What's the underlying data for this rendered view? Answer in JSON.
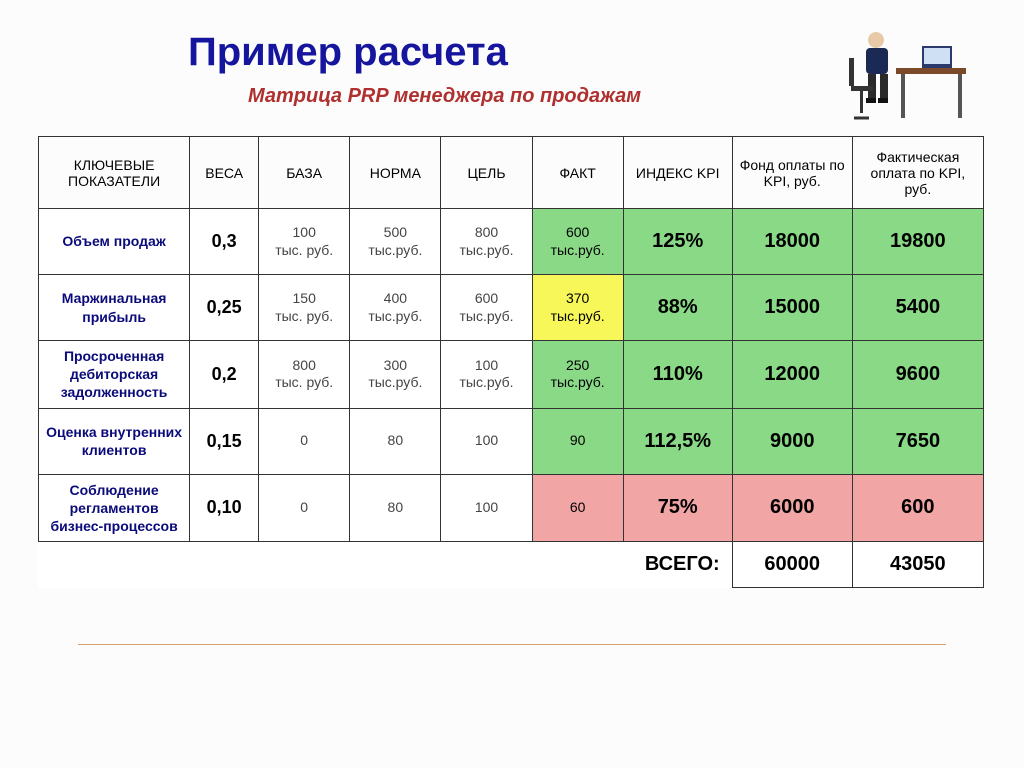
{
  "title": "Пример расчета",
  "subtitle": "Матрица PRP менеджера по продажам",
  "colors": {
    "green": "#89d987",
    "yellow": "#f7f759",
    "red": "#f2a5a5",
    "title": "#15159e",
    "subtitle": "#b03030",
    "rowlabel": "#0a0a7a",
    "border": "#333333",
    "bg": "#fcfcfc"
  },
  "headers": {
    "key": "КЛЮЧЕВЫЕ ПОКАЗАТЕЛИ",
    "weight": "ВЕСА",
    "base": "БАЗА",
    "norm": "НОРМА",
    "target": "ЦЕЛЬ",
    "fact": "ФАКТ",
    "kpi": "ИНДЕКС KPI",
    "fund": "Фонд оплаты по KPI, руб.",
    "actual": "Фактическая оплата по KPI, руб."
  },
  "rows": [
    {
      "label": "Объем продаж",
      "weight": "0,3",
      "base": "100 тыс. руб.",
      "norm": "500 тыс.руб.",
      "target": "800 тыс.руб.",
      "fact": "600 тыс.руб.",
      "fact_color": "green",
      "kpi": "125%",
      "kpi_color": "green",
      "fund": "18000",
      "fund_color": "green",
      "actual": "19800",
      "actual_color": "green"
    },
    {
      "label": "Маржинальная прибыль",
      "weight": "0,25",
      "base": "150 тыс. руб.",
      "norm": "400 тыс.руб.",
      "target": "600 тыс.руб.",
      "fact": "370 тыс.руб.",
      "fact_color": "yellow",
      "kpi": "88%",
      "kpi_color": "green",
      "fund": "15000",
      "fund_color": "green",
      "actual": "5400",
      "actual_color": "green"
    },
    {
      "label": "Просроченная дебиторская задолженность",
      "weight": "0,2",
      "base": "800 тыс. руб.",
      "norm": "300 тыс.руб.",
      "target": "100 тыс.руб.",
      "fact": "250 тыс.руб.",
      "fact_color": "green",
      "kpi": "110%",
      "kpi_color": "green",
      "fund": "12000",
      "fund_color": "green",
      "actual": "9600",
      "actual_color": "green"
    },
    {
      "label": "Оценка внутренних клиентов",
      "weight": "0,15",
      "base": "0",
      "norm": "80",
      "target": "100",
      "fact": "90",
      "fact_color": "green",
      "kpi": "112,5%",
      "kpi_color": "green",
      "fund": "9000",
      "fund_color": "green",
      "actual": "7650",
      "actual_color": "green"
    },
    {
      "label": "Соблюдение регламентов бизнес-процессов",
      "weight": "0,10",
      "base": "0",
      "norm": "80",
      "target": "100",
      "fact": "60",
      "fact_color": "red",
      "kpi": "75%",
      "kpi_color": "red",
      "fund": "6000",
      "fund_color": "red",
      "actual": "600",
      "actual_color": "red"
    }
  ],
  "totals": {
    "label": "ВСЕГО:",
    "fund": "60000",
    "actual": "43050"
  }
}
